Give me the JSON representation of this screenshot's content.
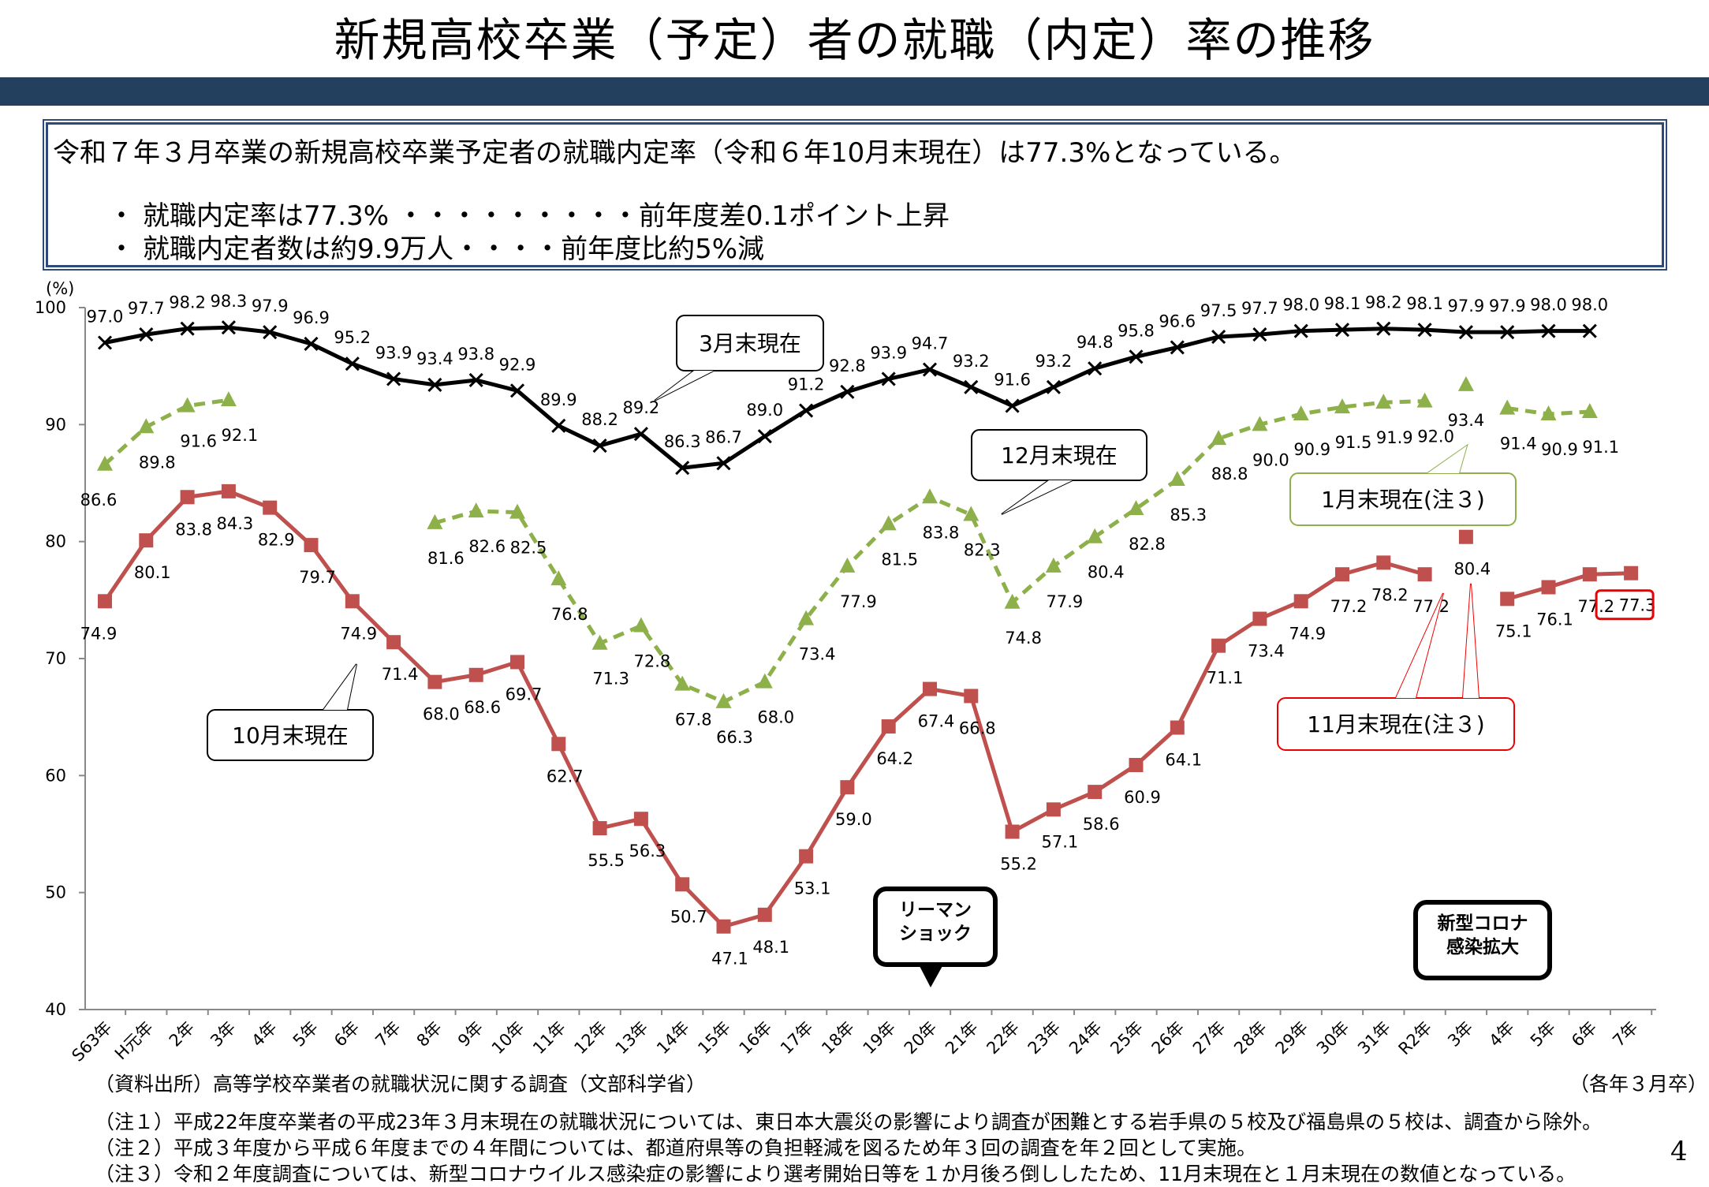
{
  "page": {
    "title": "新規高校卒業（予定）者の就職（内定）率の推移",
    "summary": {
      "lead": "令和７年３月卒業の新規高校卒業予定者の就職内定率（令和６年10月末現在）は77.3%となっている。",
      "bullet_mark": "・",
      "bullet1": "就職内定率は77.3% ・・・・・・・・・前年度差0.1ポイント上昇",
      "bullet2": "就職内定者数は約9.9万人・・・・前年度比約5%減"
    },
    "source": "（資料出所）高等学校卒業者の就職状況に関する調査（文部科学省）",
    "unit_note": "（各年３月卒）",
    "notes": [
      "（注１）平成22年度卒業者の平成23年３月末現在の就職状況については、東日本大震災の影響により調査が困難とする岩手県の５校及び福島県の５校は、調査から除外。",
      "（注２）平成３年度から平成６年度までの４年間については、都道府県等の負担軽減を図るため年３回の調査を年２回として実施。",
      "（注３）令和２年度調査については、新型コロナウイルス感染症の影響により選考開始日等を１か月後ろ倒ししたため、11月末現在と１月末現在の数値となっている。"
    ],
    "page_number": "4"
  },
  "chart_data": {
    "type": "line",
    "y_unit": "(%)",
    "ylim": [
      40,
      100
    ],
    "yticks": [
      40,
      50,
      60,
      70,
      80,
      90,
      100
    ],
    "grid": false,
    "categories": [
      "S63年",
      "H元年",
      "2年",
      "3年",
      "4年",
      "5年",
      "6年",
      "7年",
      "8年",
      "9年",
      "10年",
      "11年",
      "12年",
      "13年",
      "14年",
      "15年",
      "16年",
      "17年",
      "18年",
      "19年",
      "20年",
      "21年",
      "22年",
      "23年",
      "24年",
      "25年",
      "26年",
      "27年",
      "28年",
      "29年",
      "30年",
      "31年",
      "R2年",
      "3年",
      "4年",
      "5年",
      "6年",
      "7年"
    ],
    "series": [
      {
        "name": "3月末現在",
        "color": "#000000",
        "marker": "x",
        "values": [
          97.0,
          97.7,
          98.2,
          98.3,
          97.9,
          96.9,
          95.2,
          93.9,
          93.4,
          93.8,
          92.9,
          89.9,
          88.2,
          89.2,
          86.3,
          86.7,
          89.0,
          91.2,
          92.8,
          93.9,
          94.7,
          93.2,
          91.6,
          93.2,
          94.8,
          95.8,
          96.6,
          97.5,
          97.7,
          98.0,
          98.1,
          98.2,
          98.1,
          97.9,
          97.9,
          98.0,
          98.0,
          null
        ]
      },
      {
        "name": "12月末現在",
        "color": "#8db04a",
        "marker": "triangle",
        "dashed": true,
        "values": [
          86.6,
          89.8,
          91.6,
          92.1,
          null,
          null,
          null,
          null,
          81.6,
          82.6,
          82.5,
          76.8,
          71.3,
          72.8,
          67.8,
          66.3,
          68.0,
          73.4,
          77.9,
          81.5,
          83.8,
          82.3,
          74.8,
          77.9,
          80.4,
          82.8,
          85.3,
          88.8,
          90.0,
          90.9,
          91.5,
          91.9,
          92.0,
          null,
          91.4,
          90.9,
          91.1,
          null
        ]
      },
      {
        "name": "1月末現在(注３)",
        "color": "#8db04a",
        "marker": "triangle",
        "values": [
          null,
          null,
          null,
          null,
          null,
          null,
          null,
          null,
          null,
          null,
          null,
          null,
          null,
          null,
          null,
          null,
          null,
          null,
          null,
          null,
          null,
          null,
          null,
          null,
          null,
          null,
          null,
          null,
          null,
          null,
          null,
          null,
          null,
          93.4,
          null,
          null,
          null,
          null
        ]
      },
      {
        "name": "10月末現在",
        "color": "#c0504d",
        "marker": "square",
        "values": [
          74.9,
          80.1,
          83.8,
          84.3,
          82.9,
          79.7,
          74.9,
          71.4,
          68.0,
          68.6,
          69.7,
          62.7,
          55.5,
          56.3,
          50.7,
          47.1,
          48.1,
          53.1,
          59.0,
          64.2,
          67.4,
          66.8,
          55.2,
          57.1,
          58.6,
          60.9,
          64.1,
          71.1,
          73.4,
          74.9,
          77.2,
          78.2,
          77.2,
          null,
          75.1,
          76.1,
          77.2,
          77.3
        ]
      },
      {
        "name": "11月末現在(注３)",
        "color": "#c0504d",
        "marker": "square",
        "values": [
          null,
          null,
          null,
          null,
          null,
          null,
          null,
          null,
          null,
          null,
          null,
          null,
          null,
          null,
          null,
          null,
          null,
          null,
          null,
          null,
          null,
          null,
          null,
          null,
          null,
          null,
          null,
          null,
          null,
          null,
          null,
          null,
          null,
          80.4,
          null,
          null,
          null,
          null
        ]
      }
    ],
    "annotations": {
      "march": "3月末現在",
      "december": "12月末現在",
      "january": "1月末現在(注３)",
      "october": "10月末現在",
      "november": "11月末現在(注３)",
      "lehman": [
        "リーマン",
        "ショック"
      ],
      "corona": [
        "新型コロナ",
        "感染拡大"
      ]
    }
  }
}
